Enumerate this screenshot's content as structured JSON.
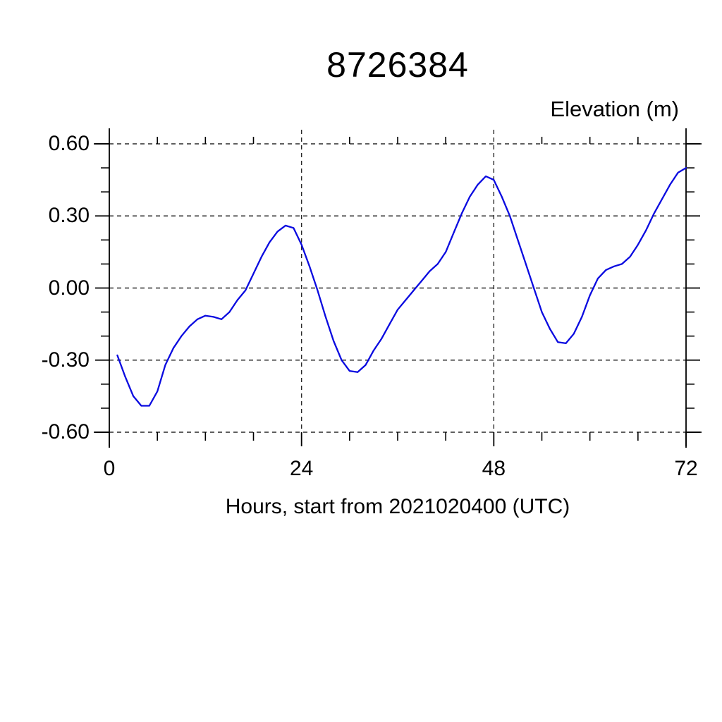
{
  "chart_data": {
    "type": "line",
    "title": "8726384",
    "ylabel": "Elevation (m)",
    "xlabel": "Hours, start from 2021020400 (UTC)",
    "xlim": [
      0,
      72
    ],
    "ylim": [
      -0.6,
      0.6
    ],
    "x_major_ticks": [
      0,
      24,
      48,
      72
    ],
    "x_tick_labels": [
      "0",
      "24",
      "48",
      "72"
    ],
    "x_minor_step": 6,
    "y_major_ticks": [
      0.6,
      0.3,
      0.0,
      -0.3,
      -0.6
    ],
    "y_tick_labels": [
      "0.60",
      "0.30",
      "0.00",
      "-0.30",
      "-0.60"
    ],
    "y_minor_step": 0.1,
    "grid": "dashed lines at major ticks; vertical gridlines at 24 and 48",
    "legend_position": "none",
    "line_color": "#0a0ae0",
    "frame_color": "#000000",
    "grid_color": "#2a2a2a",
    "series": [
      {
        "name": "elevation",
        "x_start": 1,
        "x_step": 1,
        "values": [
          -0.28,
          -0.37,
          -0.45,
          -0.49,
          -0.49,
          -0.43,
          -0.32,
          -0.25,
          -0.2,
          -0.16,
          -0.13,
          -0.115,
          -0.12,
          -0.13,
          -0.1,
          -0.05,
          -0.01,
          0.06,
          0.13,
          0.19,
          0.235,
          0.26,
          0.25,
          0.18,
          0.09,
          -0.01,
          -0.12,
          -0.22,
          -0.3,
          -0.345,
          -0.35,
          -0.32,
          -0.26,
          -0.21,
          -0.15,
          -0.09,
          -0.05,
          -0.01,
          0.03,
          0.07,
          0.1,
          0.15,
          0.23,
          0.31,
          0.38,
          0.43,
          0.465,
          0.45,
          0.38,
          0.3,
          0.2,
          0.1,
          0.0,
          -0.1,
          -0.17,
          -0.225,
          -0.23,
          -0.19,
          -0.12,
          -0.03,
          0.04,
          0.075,
          0.09,
          0.1,
          0.13,
          0.18,
          0.24,
          0.31,
          0.37,
          0.43,
          0.48,
          0.5
        ]
      }
    ]
  }
}
